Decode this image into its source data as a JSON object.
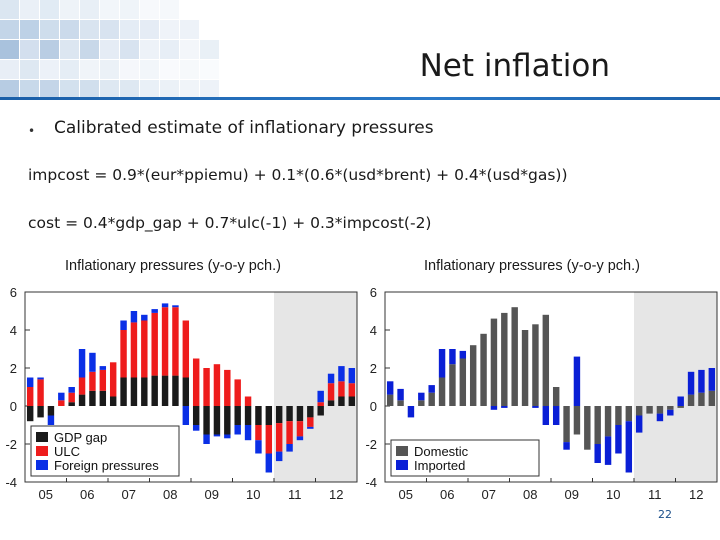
{
  "slide": {
    "title": "Net inflation",
    "bullet": "Calibrated estimate of inflationary pressures",
    "formula_1": "impcost = 0.9*(eur*ppiemu) + 0.1*(0.6*(usd*brent) + 0.4*(usd*gas))",
    "formula_2": "cost = 0.4*gdp_gap + 0.7*ulc(-1) + 0.3*impcost(-2)",
    "page_number": "22"
  },
  "colors": {
    "accent": "#1b5fa8",
    "gdp_gap": "#1a1a1a",
    "ulc": "#ee1c1c",
    "foreign": "#0a2fe6",
    "domestic": "#555555",
    "imported": "#0a1fd6",
    "forecast_shade": "#e6e6e6"
  },
  "chart_data": [
    {
      "type": "bar",
      "stacked": true,
      "title": "Inflationary pressures (y-o-y pch.)",
      "ylim": [
        -4,
        6
      ],
      "yticks": [
        6,
        4,
        2,
        0,
        -2,
        -4
      ],
      "xtick_labels": [
        "05",
        "06",
        "07",
        "08",
        "09",
        "10",
        "11",
        "12"
      ],
      "quarters": [
        "05Q1",
        "05Q2",
        "05Q3",
        "05Q4",
        "06Q1",
        "06Q2",
        "06Q3",
        "06Q4",
        "07Q1",
        "07Q2",
        "07Q3",
        "07Q4",
        "08Q1",
        "08Q2",
        "08Q3",
        "08Q4",
        "09Q1",
        "09Q2",
        "09Q3",
        "09Q4",
        "10Q1",
        "10Q2",
        "10Q3",
        "10Q4",
        "11Q1",
        "11Q2",
        "11Q3",
        "11Q4",
        "12Q1",
        "12Q2",
        "12Q3",
        "12Q4"
      ],
      "forecast_from_index": 24,
      "series": [
        {
          "name": "GDP gap",
          "color_key": "gdp_gap",
          "values": [
            -0.8,
            -0.6,
            -0.5,
            0,
            0.2,
            0.6,
            0.8,
            0.8,
            0.5,
            1.5,
            1.5,
            1.5,
            1.6,
            1.6,
            1.6,
            1.5,
            -1,
            -1.5,
            -1.5,
            -1.5,
            -1,
            -1,
            -1,
            -1,
            -0.9,
            -0.8,
            -0.8,
            -0.6,
            -0.5,
            0.3,
            0.5,
            0.5
          ]
        },
        {
          "name": "ULC",
          "color_key": "ulc",
          "values": [
            1,
            1.4,
            0,
            0.3,
            0.5,
            0.9,
            1,
            1.1,
            1.8,
            2.5,
            2.9,
            3,
            3.3,
            3.6,
            3.6,
            3,
            2.5,
            2,
            2.2,
            1.9,
            1.4,
            0.5,
            -0.8,
            -1.5,
            -1.5,
            -1.2,
            -0.8,
            -0.5,
            0.2,
            0.9,
            0.8,
            0.7
          ]
        },
        {
          "name": "Foreign pressures",
          "color_key": "foreign",
          "values": [
            0.5,
            0.1,
            -0.5,
            0.4,
            0.3,
            1.5,
            1,
            0.2,
            0,
            0.5,
            0.6,
            0.3,
            0.2,
            0.2,
            0.1,
            -1,
            -0.3,
            -0.5,
            -0.1,
            -0.2,
            -0.5,
            -0.8,
            -0.7,
            -1,
            -0.5,
            -0.4,
            -0.2,
            -0.1,
            0.6,
            0.5,
            0.8,
            0.8
          ]
        }
      ],
      "legend": {
        "position": "bottom-left",
        "labels": [
          "GDP gap",
          "ULC",
          "Foreign pressures"
        ]
      }
    },
    {
      "type": "bar",
      "stacked": true,
      "title": "Inflationary pressures (y-o-y pch.)",
      "ylim": [
        -4,
        6
      ],
      "yticks": [
        6,
        4,
        2,
        0,
        -2,
        -4
      ],
      "xtick_labels": [
        "05",
        "06",
        "07",
        "08",
        "09",
        "10",
        "11",
        "12"
      ],
      "quarters": [
        "05Q1",
        "05Q2",
        "05Q3",
        "05Q4",
        "06Q1",
        "06Q2",
        "06Q3",
        "06Q4",
        "07Q1",
        "07Q2",
        "07Q3",
        "07Q4",
        "08Q1",
        "08Q2",
        "08Q3",
        "08Q4",
        "09Q1",
        "09Q2",
        "09Q3",
        "09Q4",
        "10Q1",
        "10Q2",
        "10Q3",
        "10Q4",
        "11Q1",
        "11Q2",
        "11Q3",
        "11Q4",
        "12Q1",
        "12Q2",
        "12Q3",
        "12Q4"
      ],
      "forecast_from_index": 24,
      "series": [
        {
          "name": "Domestic",
          "color_key": "domestic",
          "values": [
            0.6,
            0.3,
            0,
            0.3,
            0.7,
            1.5,
            2.2,
            2.5,
            3.2,
            3.8,
            4.6,
            4.9,
            5.2,
            4,
            4.3,
            4.8,
            1,
            -1.9,
            -1.5,
            -2.3,
            -2,
            -1.6,
            -1,
            -0.8,
            -0.5,
            -0.4,
            -0.4,
            -0.2,
            -0.1,
            0.6,
            0.7,
            0.8
          ]
        },
        {
          "name": "Imported",
          "color_key": "imported",
          "values": [
            0.7,
            0.6,
            -0.6,
            0.4,
            0.4,
            1.5,
            0.8,
            0.4,
            0,
            0,
            -0.2,
            -0.1,
            0,
            0,
            -0.1,
            -1,
            -1,
            -0.4,
            2.6,
            0,
            -1,
            -1.5,
            -1.5,
            -2.7,
            -0.9,
            0,
            -0.4,
            -0.3,
            0.5,
            1.2,
            1.2,
            1.2
          ]
        }
      ],
      "legend": {
        "position": "bottom-left",
        "labels": [
          "Domestic",
          "Imported"
        ]
      }
    }
  ]
}
